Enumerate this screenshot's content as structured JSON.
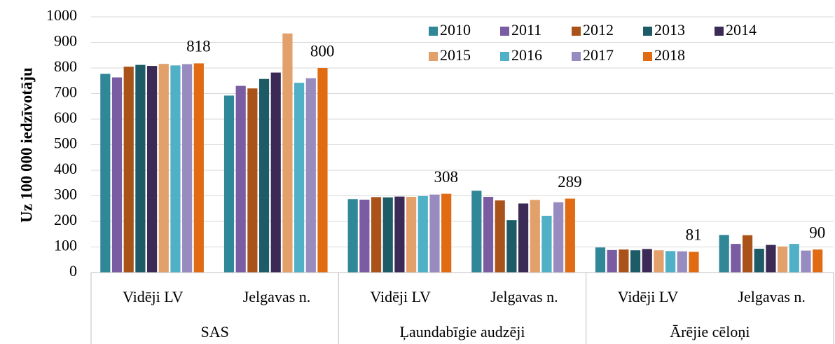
{
  "chart_data": {
    "type": "bar",
    "y_label": "Uz 100 000 iedzīvotāju",
    "categories": [
      "Vidēji LV",
      "Jelgavas n.",
      "Vidēji LV",
      "Jelgavas n.",
      "Vidēji LV",
      "Jelgavas n."
    ],
    "groups": [
      "SAS",
      "Ļaundabīgie audzēji",
      "Ārējie cēloņi"
    ],
    "series": [
      {
        "name": "2010",
        "color": "#2f8797",
        "values": [
          777,
          692,
          287,
          320,
          98,
          147
        ]
      },
      {
        "name": "2011",
        "color": "#7a5ca3",
        "values": [
          763,
          730,
          285,
          296,
          88,
          112
        ]
      },
      {
        "name": "2012",
        "color": "#a9531a",
        "values": [
          805,
          720,
          295,
          282,
          90,
          146
        ]
      },
      {
        "name": "2013",
        "color": "#1d5b66",
        "values": [
          812,
          757,
          294,
          205,
          87,
          93
        ]
      },
      {
        "name": "2014",
        "color": "#3b2a55",
        "values": [
          808,
          782,
          297,
          270,
          92,
          108
        ]
      },
      {
        "name": "2015",
        "color": "#e2a06a",
        "values": [
          816,
          935,
          296,
          284,
          87,
          102
        ]
      },
      {
        "name": "2016",
        "color": "#4fb0c6",
        "values": [
          810,
          742,
          299,
          222,
          84,
          112
        ]
      },
      {
        "name": "2017",
        "color": "#988bc0",
        "values": [
          815,
          760,
          305,
          275,
          83,
          86
        ]
      },
      {
        "name": "2018",
        "color": "#e06b12",
        "values": [
          818,
          800,
          308,
          289,
          81,
          90
        ],
        "data_labels": true
      }
    ],
    "ylim": [
      0,
      1000
    ],
    "yticks": [
      0,
      100,
      200,
      300,
      400,
      500,
      600,
      700,
      800,
      900,
      1000
    ],
    "grid": true,
    "legend": "top-right"
  }
}
